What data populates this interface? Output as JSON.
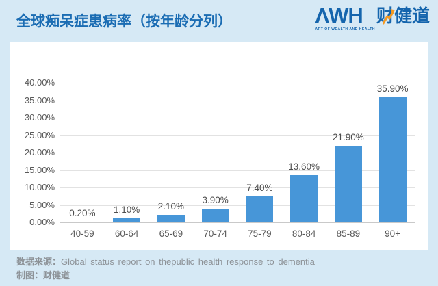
{
  "page": {
    "background_color": "#d6e9f5",
    "card_color": "#ffffff"
  },
  "header": {
    "title": "全球痴呆症患病率（按年龄分列）",
    "title_color": "#1a6cb3",
    "logo": {
      "wordmark_latin": "ΛWH",
      "wordmark_cn": "财健道",
      "tagline": "ART OF WEALTH AND HEALTH",
      "color": "#1565ad",
      "arrow_color": "#f59a23",
      "arrow_icon": "trend-up-arrow"
    }
  },
  "chart_data": {
    "type": "bar",
    "title": "全球痴呆症患病率（按年龄分列）",
    "xlabel": "",
    "ylabel": "",
    "categories": [
      "40-59",
      "60-64",
      "65-69",
      "70-74",
      "75-79",
      "80-84",
      "85-89",
      "90+"
    ],
    "values": [
      0.2,
      1.1,
      2.1,
      3.9,
      7.4,
      13.6,
      21.9,
      35.9
    ],
    "data_labels": [
      "0.20%",
      "1.10%",
      "2.10%",
      "3.90%",
      "7.40%",
      "13.60%",
      "21.90%",
      "35.90%"
    ],
    "y_ticks": [
      "40.00%",
      "35.00%",
      "30.00%",
      "25.00%",
      "20.00%",
      "15.00%",
      "10.00%",
      "5.00%",
      "0.00%"
    ],
    "ylim": [
      0,
      40
    ],
    "grid": true,
    "legend": false,
    "bar_color": "#4796d8",
    "grid_color": "#e2e2e2",
    "baseline_color": "#c9c9c9",
    "value_label_color": "#4d4d4d",
    "tick_color": "#595959"
  },
  "footer": {
    "source_label": "数据来源：",
    "source_text": "Global status report on thepublic health response to dementia",
    "credit_label": "制图：",
    "credit_text": "财健道"
  }
}
